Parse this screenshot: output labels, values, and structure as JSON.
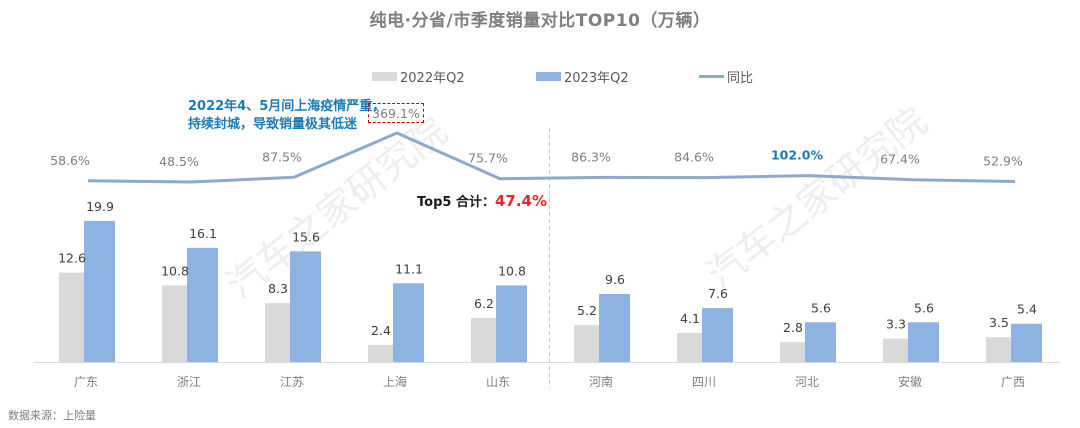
{
  "title": "纯电·分省/市季度销量对比TOP10（万辆）",
  "legend": {
    "items": [
      {
        "label": "2022年Q2",
        "color": "#d9d9d9",
        "kind": "bar"
      },
      {
        "label": "2023年Q2",
        "color": "#8db3e2",
        "kind": "bar"
      },
      {
        "label": "同比",
        "color": "#8eaacb",
        "kind": "line"
      }
    ]
  },
  "annotation": {
    "line1": "2022年4、5月间上海疫情严重，",
    "line2": "持续封城，导致销量极其低迷",
    "peak_label": "369.1%"
  },
  "top5": {
    "label": "Top5 合计：",
    "value": "47.4%"
  },
  "source": "数据来源：上险量",
  "watermark": "汽车之家研究院",
  "colors": {
    "bar_2022": "#d9d9d9",
    "bar_2023": "#8db3e2",
    "line": "#8eaacb",
    "highlight_blue": "#1f7bb6",
    "highlight_red": "#e8262b",
    "label_gray": "#7f7f7f"
  },
  "chart_data": {
    "type": "bar",
    "title": "纯电·分省/市季度销量对比TOP10（万辆）",
    "xlabel": "",
    "ylabel": "万辆",
    "categories": [
      "广东",
      "浙江",
      "江苏",
      "上海",
      "山东",
      "河南",
      "四川",
      "河北",
      "安徽",
      "广西"
    ],
    "series": [
      {
        "name": "2022年Q2",
        "type": "bar",
        "values": [
          12.6,
          10.8,
          8.3,
          2.4,
          6.2,
          5.2,
          4.1,
          2.8,
          3.3,
          3.5
        ]
      },
      {
        "name": "2023年Q2",
        "type": "bar",
        "values": [
          19.9,
          16.1,
          15.6,
          11.1,
          10.8,
          9.6,
          7.6,
          5.6,
          5.6,
          5.4
        ]
      },
      {
        "name": "同比",
        "type": "line",
        "values": [
          58.6,
          48.5,
          87.5,
          369.1,
          75.7,
          86.3,
          84.6,
          102.0,
          67.4,
          52.9
        ],
        "labels": [
          "58.6%",
          "48.5%",
          "87.5%",
          "369.1%",
          "75.7%",
          "86.3%",
          "84.6%",
          "102.0%",
          "67.4%",
          "52.9%"
        ]
      }
    ],
    "annotations": [
      "2022年4、5月间上海疫情严重，持续封城，导致销量极其低迷",
      "Top5 合计：47.4%"
    ],
    "legend_position": "top",
    "grid": false
  }
}
